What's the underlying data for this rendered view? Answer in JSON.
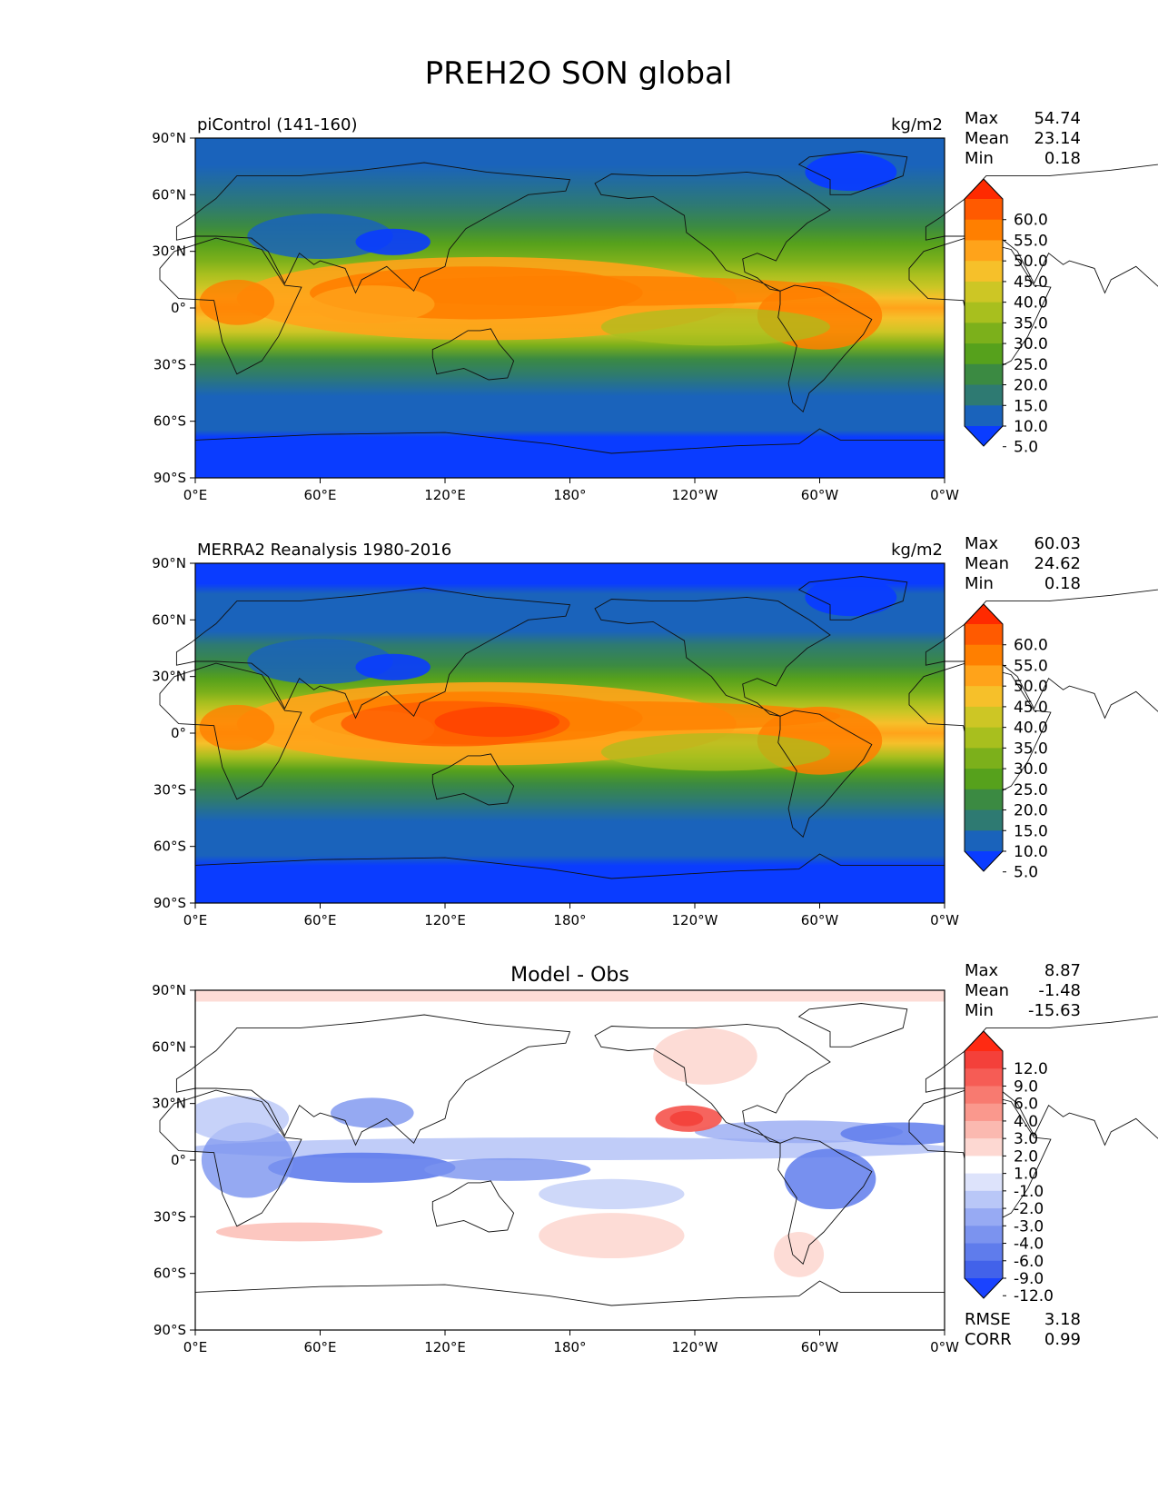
{
  "figure": {
    "title": "PREH2O SON global"
  },
  "chart_data": [
    {
      "type": "heatmap",
      "title": "piControl (141-160)",
      "units": "kg/m2",
      "stats": [
        {
          "label": "Max",
          "value": "54.74"
        },
        {
          "label": "Mean",
          "value": "23.14"
        },
        {
          "label": "Min",
          "value": "0.18"
        }
      ],
      "x_ticks": [
        "0°E",
        "60°E",
        "120°E",
        "180°",
        "120°W",
        "60°W",
        "0°W"
      ],
      "y_ticks": [
        "90°N",
        "60°N",
        "30°N",
        "0°",
        "30°S",
        "60°S",
        "90°S"
      ],
      "xlim": [
        0,
        360
      ],
      "ylim": [
        -90,
        90
      ],
      "colorbar": {
        "levels": [
          "60.0",
          "55.0",
          "50.0",
          "45.0",
          "40.0",
          "35.0",
          "30.0",
          "25.0",
          "20.0",
          "15.0",
          "10.0",
          "5.0"
        ],
        "colors": [
          "#ff2a00",
          "#ff5a00",
          "#ff7f00",
          "#ffa31a",
          "#f6c02a",
          "#cdc625",
          "#a8bf1e",
          "#7cb01b",
          "#56a11c",
          "#3b8a42",
          "#2e7a72",
          "#1a63bb",
          "#0a3cff"
        ]
      }
    },
    {
      "type": "heatmap",
      "title": "MERRA2 Reanalysis 1980-2016",
      "units": "kg/m2",
      "stats": [
        {
          "label": "Max",
          "value": "60.03"
        },
        {
          "label": "Mean",
          "value": "24.62"
        },
        {
          "label": "Min",
          "value": "0.18"
        }
      ],
      "x_ticks": [
        "0°E",
        "60°E",
        "120°E",
        "180°",
        "120°W",
        "60°W",
        "0°W"
      ],
      "y_ticks": [
        "90°N",
        "60°N",
        "30°N",
        "0°",
        "30°S",
        "60°S",
        "90°S"
      ],
      "xlim": [
        0,
        360
      ],
      "ylim": [
        -90,
        90
      ],
      "colorbar": {
        "levels": [
          "60.0",
          "55.0",
          "50.0",
          "45.0",
          "40.0",
          "35.0",
          "30.0",
          "25.0",
          "20.0",
          "15.0",
          "10.0",
          "5.0"
        ],
        "colors": [
          "#ff2a00",
          "#ff5a00",
          "#ff7f00",
          "#ffa31a",
          "#f6c02a",
          "#cdc625",
          "#a8bf1e",
          "#7cb01b",
          "#56a11c",
          "#3b8a42",
          "#2e7a72",
          "#1a63bb",
          "#0a3cff"
        ]
      }
    },
    {
      "type": "heatmap",
      "title": "Model - Obs",
      "units": "",
      "stats": [
        {
          "label": "Max",
          "value": "8.87"
        },
        {
          "label": "Mean",
          "value": "-1.48"
        },
        {
          "label": "Min",
          "value": "-15.63"
        }
      ],
      "extra_stats": [
        {
          "label": "RMSE",
          "value": "3.18"
        },
        {
          "label": "CORR",
          "value": "0.99"
        }
      ],
      "x_ticks": [
        "0°E",
        "60°E",
        "120°E",
        "180°",
        "120°W",
        "60°W",
        "0°W"
      ],
      "y_ticks": [
        "90°N",
        "60°N",
        "30°N",
        "0°",
        "30°S",
        "60°S",
        "90°S"
      ],
      "xlim": [
        0,
        360
      ],
      "ylim": [
        -90,
        90
      ],
      "colorbar": {
        "levels": [
          "12.0",
          "9.0",
          "6.0",
          "4.0",
          "3.0",
          "2.0",
          "1.0",
          "-1.0",
          "-2.0",
          "-3.0",
          "-4.0",
          "-6.0",
          "-9.0",
          "-12.0"
        ],
        "colors": [
          "#ff2a12",
          "#f4403a",
          "#f65c55",
          "#f87a70",
          "#fa988d",
          "#fbb9b0",
          "#fdd8d2",
          "#ffffff",
          "#dde3fb",
          "#b9c7f7",
          "#97aaf3",
          "#7b93ef",
          "#5f7cec",
          "#4262ea",
          "#1a43ff"
        ]
      }
    }
  ]
}
